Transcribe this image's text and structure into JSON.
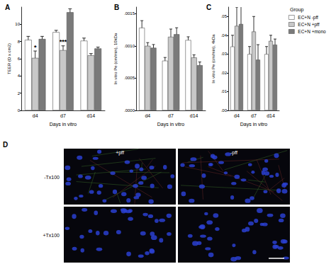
{
  "chart_data": [
    {
      "type": "bar",
      "title": "A",
      "x_label": "Days in vitro",
      "y_label": "TEER (Ω x cm2)",
      "categories": [
        "d4",
        "d7",
        "d14"
      ],
      "series": [
        {
          "name": "EC+N -pff",
          "color": "#ffffff",
          "values": [
            8.2,
            9.1,
            8.1
          ],
          "errors": [
            0.4,
            0.2,
            0.3
          ]
        },
        {
          "name": "EC+N +pff",
          "color": "#c8c8c8",
          "values": [
            6.1,
            7.0,
            6.4
          ],
          "errors": [
            0.8,
            0.5,
            0.2
          ]
        },
        {
          "name": "EC+N +mono",
          "color": "#7a7a7a",
          "values": [
            8.3,
            11.4,
            7.2
          ],
          "errors": [
            0.3,
            0.4,
            0.15
          ]
        }
      ],
      "annotations": [
        {
          "category": "d4",
          "series": "EC+N +pff",
          "text": "*"
        },
        {
          "category": "d7",
          "series": "EC+N +pff",
          "text": "***"
        }
      ],
      "ylim": [
        0,
        12
      ],
      "yticks": [
        0,
        2,
        4,
        6,
        8,
        10
      ],
      "grid": false,
      "legend": "right"
    },
    {
      "type": "bar",
      "title": "B",
      "x_label": "Days in vitro",
      "y_label": "In vitro Pe (cm/min), 10kDa",
      "categories": [
        "d4",
        "d7",
        "d14"
      ],
      "series": [
        {
          "name": "EC+N -pff",
          "color": "#ffffff",
          "values": [
            0.00128,
            0.00077,
            0.00109
          ],
          "errors": [
            0.00011,
            5e-05,
            5e-05
          ]
        },
        {
          "name": "EC+N +pff",
          "color": "#c8c8c8",
          "values": [
            0.001,
            0.00114,
            0.00082
          ],
          "errors": [
            5e-05,
            0.00012,
            4e-05
          ]
        },
        {
          "name": "EC+N +mono",
          "color": "#7a7a7a",
          "values": [
            0.00097,
            0.00118,
            0.0007
          ],
          "errors": [
            5e-05,
            0.0001,
            5e-05
          ]
        }
      ],
      "ylim": [
        0,
        0.0016
      ],
      "yticks": [
        {
          "value": 0,
          "label": ".0000"
        },
        {
          "value": 0.0005,
          "label": ".0005"
        },
        {
          "value": 0.001,
          "label": ".0010"
        },
        {
          "value": 0.0015,
          "label": ".0015"
        }
      ],
      "grid": false
    },
    {
      "type": "bar",
      "title": "C",
      "x_label": "Days in vitro",
      "y_label": "In vitro Pe (cm/min), 4kDa",
      "categories": [
        "d4",
        "d7",
        "d14"
      ],
      "series": [
        {
          "name": "EC+N -pff",
          "color": "#ffffff",
          "values": [
            0.034,
            0.03,
            0.03
          ],
          "errors": [
            0.006,
            0.004,
            0.004
          ]
        },
        {
          "name": "EC+N +pff",
          "color": "#c8c8c8",
          "values": [
            0.045,
            0.042,
            0.037
          ],
          "errors": [
            0.01,
            0.008,
            0.003
          ]
        },
        {
          "name": "EC+N +mono",
          "color": "#7a7a7a",
          "values": [
            0.046,
            0.027,
            0.035
          ],
          "errors": [
            0.012,
            0.008,
            0.003
          ]
        }
      ],
      "ylim": [
        0,
        0.055
      ],
      "yticks": [
        {
          "value": 0,
          "label": ".00"
        },
        {
          "value": 0.01,
          "label": ".01"
        },
        {
          "value": 0.02,
          "label": ".02"
        },
        {
          "value": 0.03,
          "label": ".03"
        },
        {
          "value": 0.04,
          "label": ".04"
        },
        {
          "value": 0.05,
          "label": ".05"
        }
      ],
      "grid": false
    }
  ],
  "legend_title": "Group",
  "panel_d": {
    "label": "D",
    "columns": [
      "+pff",
      "-pff"
    ],
    "rows": [
      "-Tx100",
      "+Tx100"
    ]
  }
}
